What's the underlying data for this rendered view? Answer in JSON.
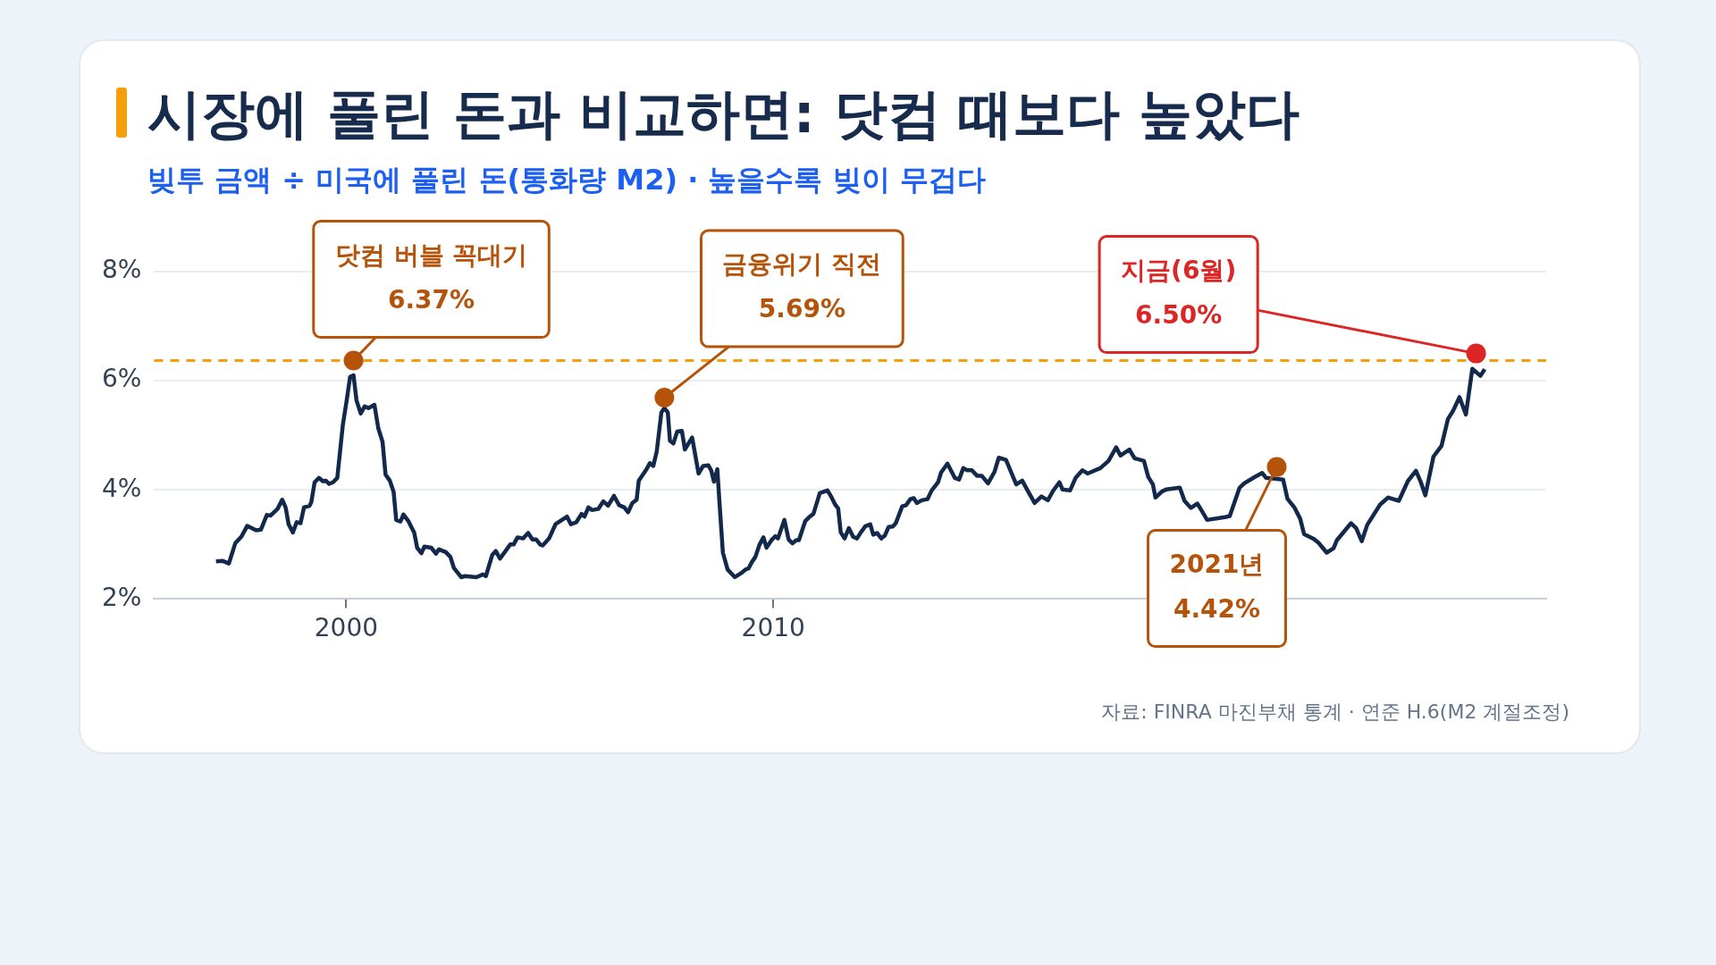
{
  "chart_data": {
    "type": "line",
    "title": "시장에 풀린 돈과 비교하면: 닷컴 때보다 높았다",
    "subtitle": "빚투 금액 ÷ 미국에 풀린 돈(통화량 M2) · 높을수록 빚이 무겁다",
    "x": [
      1996.95,
      1997.1,
      1997.25,
      1997.4,
      1997.55,
      1997.68,
      1997.89,
      1998.0,
      1998.14,
      1998.23,
      1998.39,
      1998.5,
      1998.58,
      1998.65,
      1998.75,
      1998.84,
      1998.93,
      1999.01,
      1999.14,
      1999.18,
      1999.26,
      1999.36,
      1999.45,
      1999.52,
      1999.6,
      1999.69,
      1999.79,
      1999.92,
      2000.01,
      2000.09,
      2000.17,
      2000.24,
      2000.34,
      2000.43,
      2000.52,
      2000.66,
      2000.75,
      2000.85,
      2000.92,
      2001.02,
      2001.11,
      2001.17,
      2001.27,
      2001.34,
      2001.46,
      2001.59,
      2001.66,
      2001.76,
      2001.83,
      2001.99,
      2002.1,
      2002.17,
      2002.33,
      2002.44,
      2002.52,
      2002.69,
      2002.78,
      2003.05,
      2003.2,
      2003.27,
      2003.42,
      2003.5,
      2003.6,
      2003.84,
      2003.92,
      2004.01,
      2004.14,
      2004.26,
      2004.36,
      2004.45,
      2004.54,
      2004.6,
      2004.75,
      2004.9,
      2005.17,
      2005.26,
      2005.39,
      2005.51,
      2005.58,
      2005.67,
      2005.75,
      2005.9,
      2006.02,
      2006.13,
      2006.27,
      2006.39,
      2006.51,
      2006.6,
      2006.7,
      2006.8,
      2006.85,
      2007.04,
      2007.11,
      2007.19,
      2007.27,
      2007.38,
      2007.45,
      2007.53,
      2007.58,
      2007.66,
      2007.75,
      2007.86,
      2007.93,
      2008.1,
      2008.25,
      2008.36,
      2008.48,
      2008.55,
      2008.61,
      2008.69,
      2008.74,
      2008.82,
      2008.93,
      2009.1,
      2009.24,
      2009.35,
      2009.42,
      2009.5,
      2009.58,
      2009.68,
      2009.77,
      2009.84,
      2009.96,
      2010.05,
      2010.11,
      2010.26,
      2010.36,
      2010.45,
      2010.54,
      2010.6,
      2010.75,
      2010.84,
      2010.94,
      2011.09,
      2011.27,
      2011.36,
      2011.45,
      2011.52,
      2011.58,
      2011.67,
      2011.77,
      2011.87,
      2011.96,
      2012.05,
      2012.15,
      2012.27,
      2012.34,
      2012.43,
      2012.53,
      2012.61,
      2012.7,
      2012.8,
      2012.87,
      2013.02,
      2013.11,
      2013.21,
      2013.29,
      2013.36,
      2013.48,
      2013.61,
      2013.71,
      2013.86,
      2013.93,
      2014.08,
      2014.25,
      2014.35,
      2014.45,
      2014.54,
      2014.65,
      2014.77,
      2014.88,
      2015.03,
      2015.18,
      2015.28,
      2015.45,
      2015.6,
      2015.69,
      2015.83,
      2015.94,
      2016.12,
      2016.28,
      2016.43,
      2016.55,
      2016.7,
      2016.77,
      2016.95,
      2017.08,
      2017.24,
      2017.36,
      2017.66,
      2017.85,
      2018.03,
      2018.13,
      2018.34,
      2018.46,
      2018.68,
      2018.78,
      2018.89,
      2018.95,
      2019.1,
      2019.21,
      2019.52,
      2019.63,
      2019.78,
      2019.93,
      2020.04,
      2020.16,
      2020.58,
      2020.69,
      2020.92,
      2021.03,
      2021.26,
      2021.45,
      2021.54,
      2021.94,
      2022.04,
      2022.21,
      2022.34,
      2022.43,
      2022.66,
      2022.77,
      2022.96,
      2023.12,
      2023.2,
      2023.53,
      2023.65,
      2023.78,
      2023.91,
      2024.21,
      2024.4,
      2024.65,
      2024.86,
      2025.05,
      2025.16,
      2025.27,
      2025.46,
      2025.65,
      2025.8,
      2025.92,
      2026.07,
      2026.22,
      2026.37,
      2026.56,
      2026.66
    ],
    "values": [
      2.69,
      2.7,
      2.65,
      3.02,
      3.15,
      3.34,
      3.26,
      3.27,
      3.54,
      3.53,
      3.65,
      3.82,
      3.68,
      3.37,
      3.22,
      3.41,
      3.39,
      3.68,
      3.71,
      3.77,
      4.14,
      4.22,
      4.16,
      4.17,
      4.11,
      4.14,
      4.22,
      5.19,
      5.64,
      6.07,
      6.1,
      5.64,
      5.4,
      5.53,
      5.5,
      5.56,
      5.13,
      4.88,
      4.28,
      4.17,
      3.96,
      3.45,
      3.42,
      3.55,
      3.42,
      3.22,
      2.94,
      2.84,
      2.96,
      2.94,
      2.83,
      2.91,
      2.86,
      2.77,
      2.57,
      2.4,
      2.42,
      2.4,
      2.45,
      2.42,
      2.81,
      2.88,
      2.74,
      3.0,
      3.0,
      3.13,
      3.11,
      3.21,
      3.09,
      3.09,
      3.0,
      2.98,
      3.11,
      3.37,
      3.51,
      3.37,
      3.41,
      3.56,
      3.51,
      3.68,
      3.63,
      3.65,
      3.79,
      3.71,
      3.89,
      3.72,
      3.68,
      3.59,
      3.76,
      3.82,
      4.17,
      4.39,
      4.49,
      4.44,
      4.7,
      5.42,
      5.5,
      5.42,
      4.9,
      4.85,
      5.07,
      5.08,
      4.74,
      4.96,
      4.3,
      4.44,
      4.45,
      4.35,
      4.15,
      4.38,
      3.77,
      2.85,
      2.54,
      2.4,
      2.47,
      2.54,
      2.56,
      2.68,
      2.77,
      3.0,
      3.13,
      2.94,
      3.08,
      3.15,
      3.11,
      3.45,
      3.09,
      3.02,
      3.08,
      3.08,
      3.43,
      3.5,
      3.56,
      3.94,
      3.99,
      3.87,
      3.73,
      3.66,
      3.22,
      3.11,
      3.3,
      3.14,
      3.11,
      3.22,
      3.33,
      3.37,
      3.18,
      3.21,
      3.11,
      3.16,
      3.32,
      3.33,
      3.39,
      3.7,
      3.72,
      3.83,
      3.85,
      3.76,
      3.81,
      3.83,
      3.99,
      4.14,
      4.32,
      4.48,
      4.22,
      4.19,
      4.4,
      4.36,
      4.36,
      4.26,
      4.26,
      4.12,
      4.33,
      4.59,
      4.55,
      4.27,
      4.1,
      4.17,
      4.01,
      3.76,
      3.88,
      3.81,
      3.98,
      4.14,
      4.01,
      3.99,
      4.22,
      4.36,
      4.3,
      4.4,
      4.53,
      4.78,
      4.63,
      4.74,
      4.58,
      4.53,
      4.24,
      4.1,
      3.86,
      3.97,
      4.01,
      4.04,
      3.8,
      3.67,
      3.75,
      3.61,
      3.45,
      3.5,
      3.52,
      4.04,
      4.12,
      4.23,
      4.31,
      4.22,
      4.19,
      3.84,
      3.67,
      3.47,
      3.19,
      3.1,
      3.03,
      2.85,
      2.93,
      3.08,
      3.39,
      3.3,
      3.06,
      3.36,
      3.73,
      3.86,
      3.8,
      4.16,
      4.35,
      4.15,
      3.9,
      4.61,
      4.81,
      5.3,
      5.45,
      5.7,
      5.38,
      6.22,
      6.09,
      6.21
    ],
    "color": "#13294b",
    "xlim": [
      1995.5,
      2028.1
    ],
    "xticks": [
      2000,
      2010
    ],
    "ylim": [
      2,
      8
    ],
    "yticks": [
      {
        "value": 2,
        "label": "2%"
      },
      {
        "value": 4,
        "label": "4%"
      },
      {
        "value": 6,
        "label": "6%"
      },
      {
        "value": 8,
        "label": "8%"
      }
    ],
    "grid": "y",
    "legend": false,
    "marker": "none",
    "line_style": "solid",
    "ref_lines": [
      {
        "axis": "y",
        "value": 6.37,
        "color": "#f59e0b",
        "line_style": "dashed"
      }
    ],
    "annotations": [
      {
        "text": "닷컴 버블 꼭대기\n6.37%",
        "x": 2000.17,
        "y": 6.37
      },
      {
        "text": "금융위기 직전\n5.69%",
        "x": 2007.45,
        "y": 5.69
      },
      {
        "text": "2021년\n4.42%",
        "x": 2021.79,
        "y": 4.42
      },
      {
        "text": "지금(6월)\n6.50%",
        "x": 2026.46,
        "y": 6.5
      },
      "자료: FINRA 마진부채 통계 · 연준 H.6(M2 계절조정)"
    ]
  }
}
